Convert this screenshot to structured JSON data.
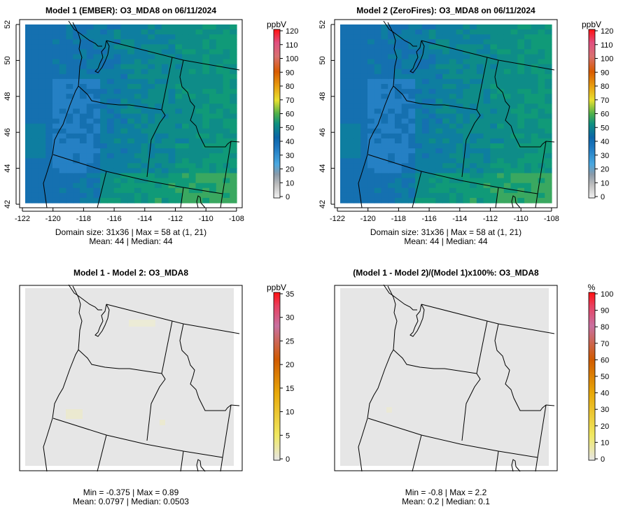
{
  "panels": [
    {
      "title": "Model 1 (EMBER): O3_MDA8 on 06/11/2024",
      "unit": "ppbV",
      "kind": "conc",
      "stats1": "Domain size: 31x36 | Max = 58 at (1, 21)",
      "stats2": "Mean: 44 |  Median: 44",
      "colorbar_ticks": [
        "0",
        "10",
        "20",
        "30",
        "40",
        "50",
        "60",
        "70",
        "80",
        "90",
        "100",
        "110",
        "120"
      ]
    },
    {
      "title": "Model 2 (ZeroFires): O3_MDA8 on 06/11/2024",
      "unit": "ppbV",
      "kind": "conc",
      "stats1": "Domain size: 31x36 | Max = 58 at (1, 21)",
      "stats2": "Mean: 44 |  Median: 44",
      "colorbar_ticks": [
        "0",
        "10",
        "20",
        "30",
        "40",
        "50",
        "60",
        "70",
        "80",
        "90",
        "100",
        "110",
        "120"
      ]
    },
    {
      "title": "Model 1 - Model 2: O3_MDA8",
      "unit": "ppbV",
      "kind": "diff",
      "stats1": "Min = -0.375 | Max = 0.89",
      "stats2": "Mean: 0.0797 |  Median: 0.0503",
      "colorbar_ticks": [
        "0",
        "5",
        "10",
        "15",
        "20",
        "25",
        "30",
        "35"
      ]
    },
    {
      "title": "(Model 1 - Model 2)/(Model 1)x100%: O3_MDA8",
      "unit": "%",
      "kind": "pct",
      "stats1": "Min = -0.8 | Max = 2.2",
      "stats2": "Mean: 0.2 |  Median: 0.1",
      "colorbar_ticks": [
        "0",
        "10",
        "20",
        "30",
        "40",
        "50",
        "60",
        "70",
        "80",
        "90",
        "100"
      ]
    }
  ],
  "axes": {
    "x_ticks": [
      "-122",
      "-120",
      "-118",
      "-116",
      "-114",
      "-112",
      "-110",
      "-108"
    ],
    "y_ticks": [
      "42",
      "44",
      "46",
      "48",
      "50",
      "52"
    ]
  },
  "colors": {
    "conc_blue": "#1570b0",
    "conc_teal": "#0e8c88",
    "conc_green": "#3aa860",
    "diff_bg": "#e6e6e6"
  }
}
